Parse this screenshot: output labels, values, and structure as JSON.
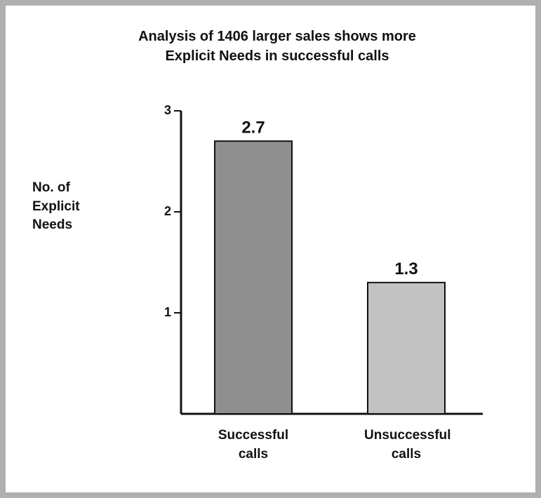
{
  "chart_data": {
    "type": "bar",
    "title": "Analysis of 1406 larger sales shows more Explicit Needs in successful calls",
    "y_label": "No. of Explicit Needs",
    "categories": [
      "Successful calls",
      "Unsuccessful calls"
    ],
    "values": [
      2.7,
      1.3
    ],
    "colors": [
      "#8f8f8f",
      "#c2c2c2"
    ],
    "ylim": [
      0,
      3
    ],
    "yticks": [
      1,
      2,
      3
    ],
    "grid": false
  }
}
